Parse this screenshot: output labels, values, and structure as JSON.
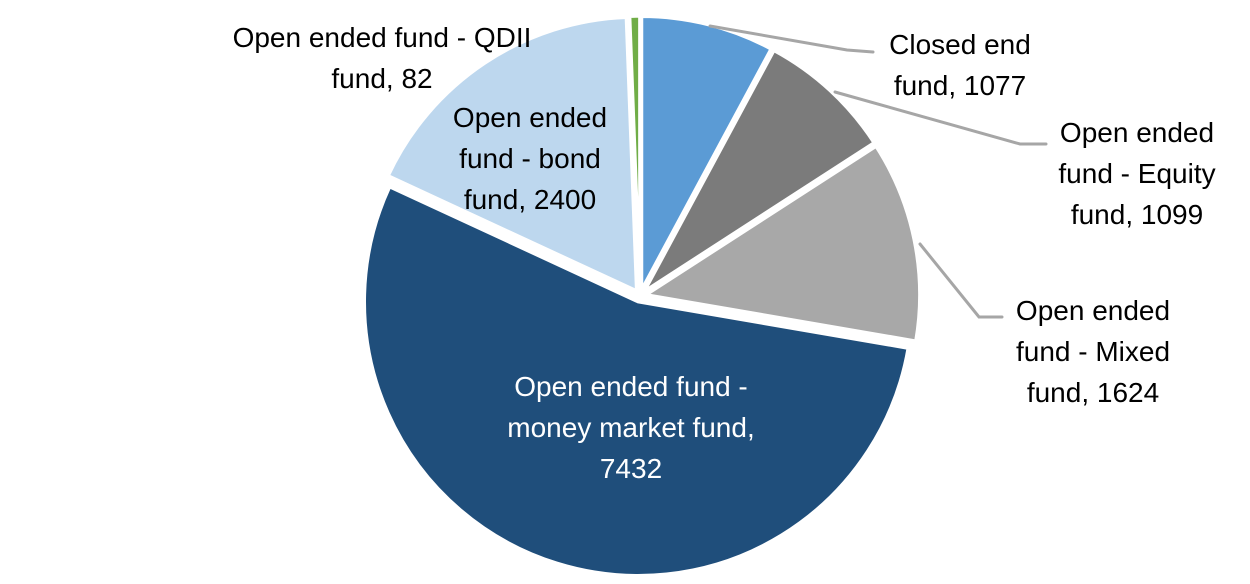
{
  "chart_data": {
    "type": "pie",
    "title": "",
    "start_angle_deg": 0,
    "direction": "clockwise",
    "legend": "none",
    "background": "#FFFFFF",
    "leader_line_color": "#A6A6A6",
    "slices": [
      {
        "id": "closed-end-fund",
        "label": "Closed end fund",
        "value": 1077,
        "color": "#5B9BD5",
        "label_color": "#000000",
        "label_position": "outside-leader",
        "label_lines": [
          "Closed end",
          "fund, 1077"
        ]
      },
      {
        "id": "equity-fund",
        "label": "Open ended fund - Equity fund",
        "value": 1099,
        "color": "#7B7B7B",
        "label_color": "#000000",
        "label_position": "outside-leader",
        "label_lines": [
          "Open ended",
          "fund - Equity",
          "fund, 1099"
        ]
      },
      {
        "id": "mixed-fund",
        "label": "Open ended fund - Mixed fund",
        "value": 1624,
        "color": "#A8A8A8",
        "label_color": "#000000",
        "label_position": "outside-leader",
        "label_lines": [
          "Open ended",
          "fund - Mixed",
          "fund, 1624"
        ]
      },
      {
        "id": "money-market-fund",
        "label": "Open ended fund - money market fund",
        "value": 7432,
        "color": "#1F4E7B",
        "label_color": "#FFFFFF",
        "label_position": "inside",
        "label_lines": [
          "Open ended fund -",
          "money market fund,",
          "7432"
        ]
      },
      {
        "id": "bond-fund",
        "label": "Open ended fund - bond fund",
        "value": 2400,
        "color": "#BDD7EE",
        "label_color": "#000000",
        "label_position": "inside",
        "label_lines": [
          "Open ended",
          "fund - bond",
          "fund, 2400"
        ]
      },
      {
        "id": "qdii-fund",
        "label": "Open ended fund - QDII fund",
        "value": 82,
        "color": "#70AD47",
        "label_color": "#000000",
        "label_position": "outside",
        "label_lines": [
          "Open ended fund - QDII",
          "fund, 82"
        ]
      }
    ]
  }
}
